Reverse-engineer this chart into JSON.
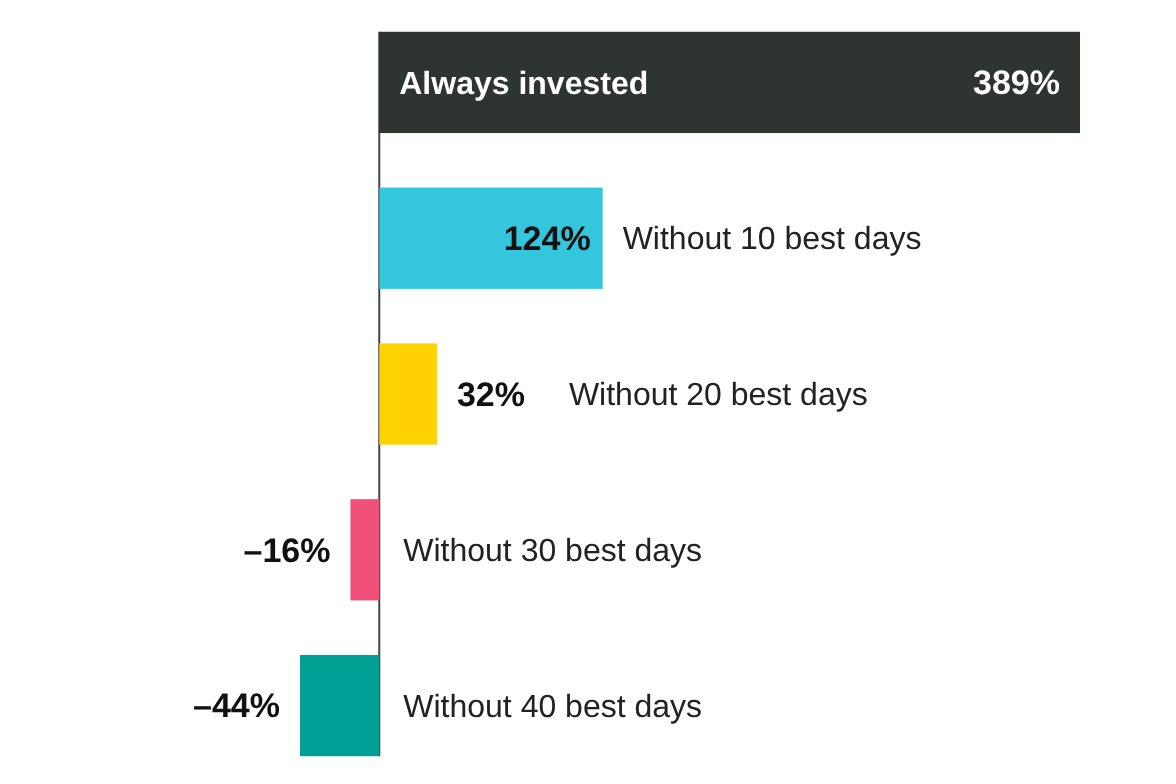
{
  "chart_data": {
    "type": "bar",
    "orientation": "horizontal",
    "categories": [
      "Always invested",
      "Without 10 best days",
      "Without 20 best days",
      "Without 30 best days",
      "Without 40 best days"
    ],
    "values": [
      389,
      124,
      32,
      -16,
      -44
    ],
    "value_labels": [
      "389%",
      "124%",
      "32%",
      "–16%",
      "–44%"
    ],
    "colors": [
      "#2e3430",
      "#33c6dc",
      "#ffd200",
      "#f0507a",
      "#00a096"
    ]
  }
}
